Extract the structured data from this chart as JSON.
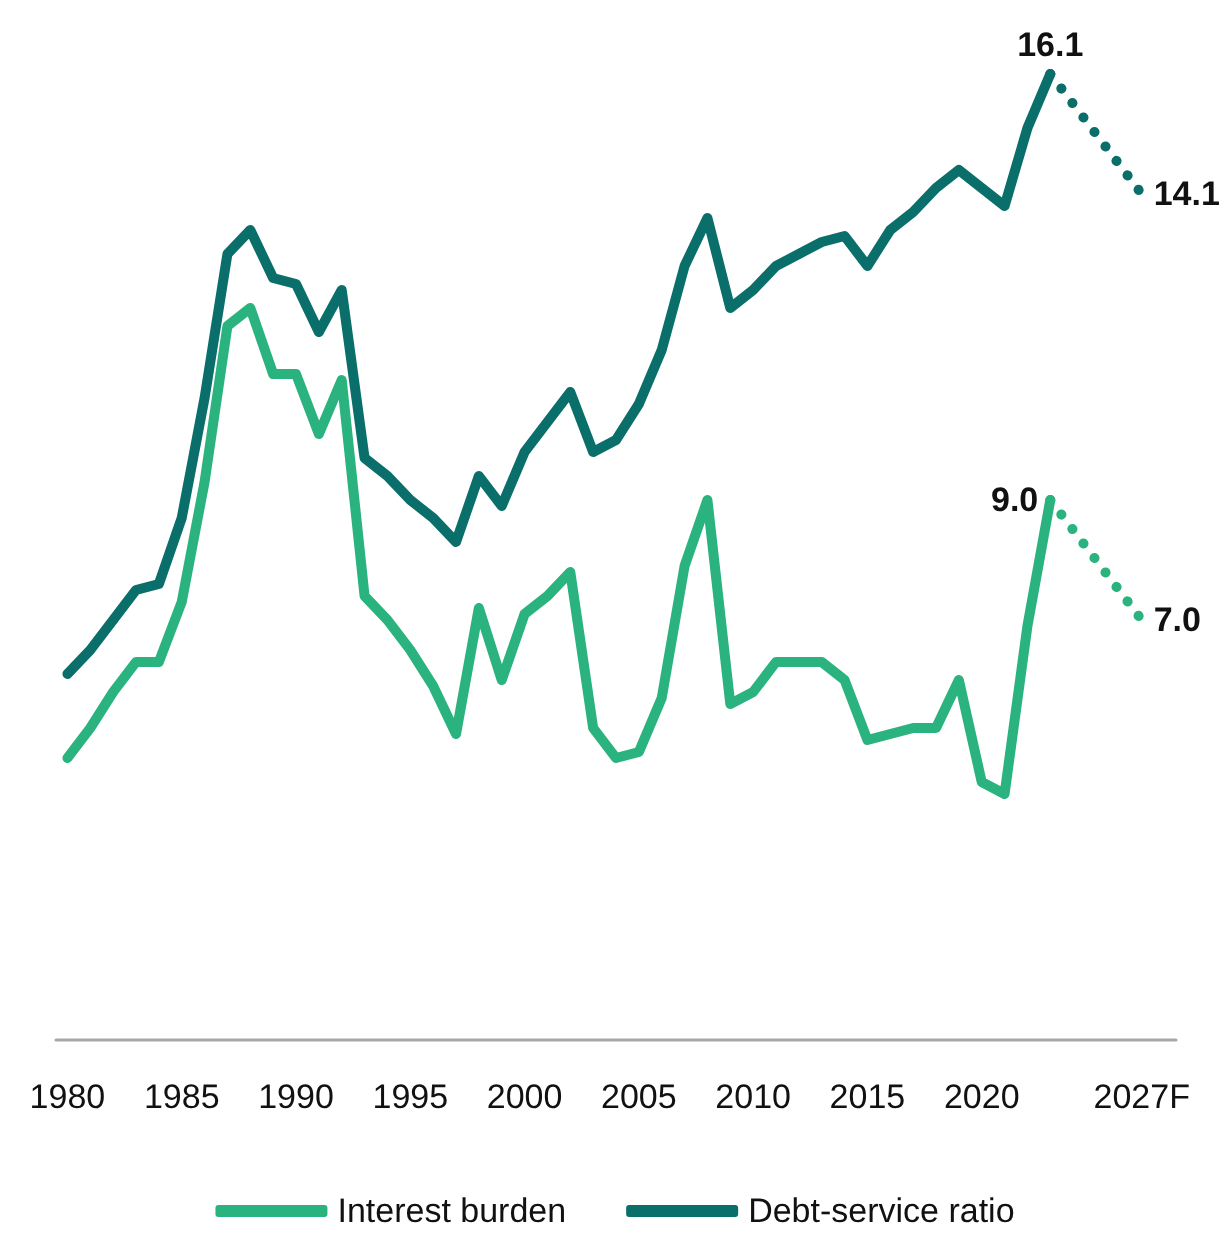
{
  "chart_data": {
    "type": "line",
    "xlim": [
      1979.5,
      2028.5
    ],
    "xticks": [
      1980,
      1985,
      1990,
      1995,
      2000,
      2005,
      2010,
      2015,
      2020,
      {
        "value": 2027,
        "label": "2027F"
      }
    ],
    "tick_labels": "x",
    "legend": "bottom",
    "marker": "none",
    "series": [
      {
        "name": "Interest burden",
        "color": "#2bb37f",
        "line_style": "solid",
        "x": [
          1980,
          1981,
          1982,
          1983,
          1984,
          1985,
          1986,
          1987,
          1988,
          1989,
          1990,
          1991,
          1992,
          1993,
          1994,
          1995,
          1996,
          1997,
          1998,
          1999,
          2000,
          2001,
          2002,
          2003,
          2004,
          2005,
          2006,
          2007,
          2008,
          2009,
          2010,
          2011,
          2012,
          2013,
          2014,
          2015,
          2016,
          2017,
          2018,
          2019,
          2020,
          2021,
          2022,
          2023
        ],
        "values": [
          4.7,
          5.2,
          5.8,
          6.3,
          6.3,
          7.3,
          9.3,
          11.9,
          12.2,
          11.1,
          11.1,
          10.1,
          11.0,
          7.4,
          7.0,
          6.5,
          5.9,
          5.1,
          7.2,
          6.0,
          7.1,
          7.4,
          7.8,
          5.2,
          4.7,
          4.8,
          5.7,
          7.9,
          9.0,
          5.6,
          5.8,
          6.3,
          6.3,
          6.3,
          6.0,
          5.0,
          5.1,
          5.2,
          5.2,
          6.0,
          4.3,
          4.1,
          6.9,
          9.0
        ]
      },
      {
        "name": "Debt-service ratio",
        "color": "#0a6f6a",
        "line_style": "solid",
        "x": [
          1980,
          1981,
          1982,
          1983,
          1984,
          1985,
          1986,
          1987,
          1988,
          1989,
          1990,
          1991,
          1992,
          1993,
          1994,
          1995,
          1996,
          1997,
          1998,
          1999,
          2000,
          2001,
          2002,
          2003,
          2004,
          2005,
          2006,
          2007,
          2008,
          2009,
          2010,
          2011,
          2012,
          2013,
          2014,
          2015,
          2016,
          2017,
          2018,
          2019,
          2020,
          2021,
          2022,
          2023
        ],
        "values": [
          6.1,
          6.5,
          7.0,
          7.5,
          7.6,
          8.7,
          10.7,
          13.1,
          13.5,
          12.7,
          12.6,
          11.8,
          12.5,
          9.7,
          9.4,
          9.0,
          8.7,
          8.3,
          9.4,
          8.9,
          9.8,
          10.3,
          10.8,
          9.8,
          10.0,
          10.6,
          11.5,
          12.9,
          13.7,
          12.2,
          12.5,
          12.9,
          13.1,
          13.3,
          13.4,
          12.9,
          13.5,
          13.8,
          14.2,
          14.5,
          14.2,
          13.9,
          15.2,
          16.1
        ]
      },
      {
        "color": "#2bb37f",
        "line_style": "dotted",
        "x": [
          2023,
          2027
        ],
        "values": [
          9.0,
          7.0
        ],
        "value_labels": [
          "9.0",
          "7.0"
        ]
      },
      {
        "color": "#0a6f6a",
        "line_style": "dotted",
        "x": [
          2023,
          2027
        ],
        "values": [
          16.1,
          14.1
        ],
        "value_labels": [
          "16.1",
          "14.1"
        ]
      }
    ]
  }
}
